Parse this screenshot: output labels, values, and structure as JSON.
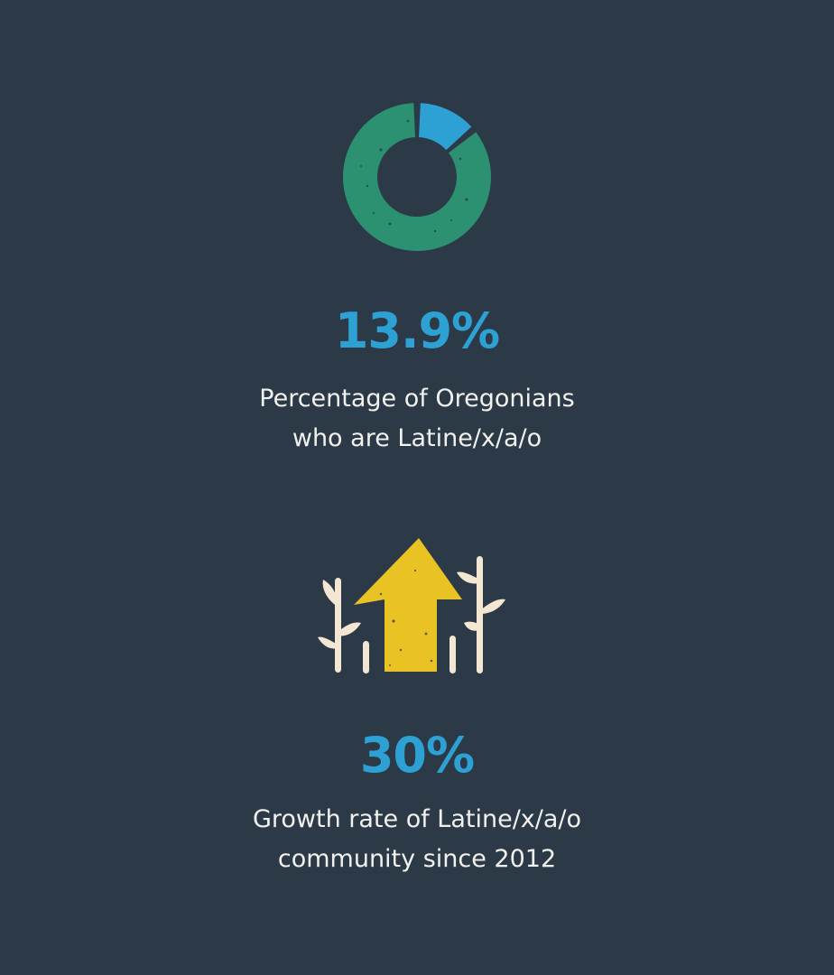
{
  "colors": {
    "background": "#2c3a47",
    "accent_blue": "#2ea1d4",
    "ring_green": "#2b9170",
    "arrow_yellow": "#e9c223",
    "sprout_cream": "#f3e6d3",
    "text": "#f1f1ee"
  },
  "stats": [
    {
      "icon": "donut-chart-icon",
      "value": "13.9%",
      "value_fraction": 0.139,
      "desc_line1": "Percentage of Oregonians",
      "desc_line2": "who are Latine/x/a/o"
    },
    {
      "icon": "growth-arrow-icon",
      "value": "30%",
      "desc_line1": "Growth rate of Latine/x/a/o",
      "desc_line2": "community since 2012"
    }
  ]
}
